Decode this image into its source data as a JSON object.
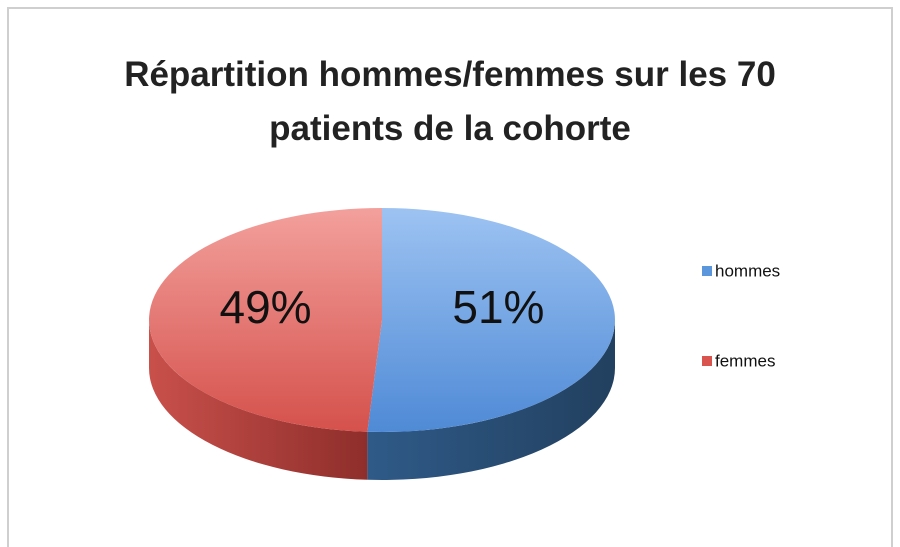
{
  "chart_data": {
    "type": "pie",
    "title": "Répartition hommes/femmes sur les 70 patients de la cohorte",
    "categories": [
      "hommes",
      "femmes"
    ],
    "values": [
      51,
      49
    ],
    "value_labels": [
      "51%",
      "49%"
    ],
    "colors": [
      "#5b95dc",
      "#d9534f"
    ],
    "legend": "right"
  }
}
